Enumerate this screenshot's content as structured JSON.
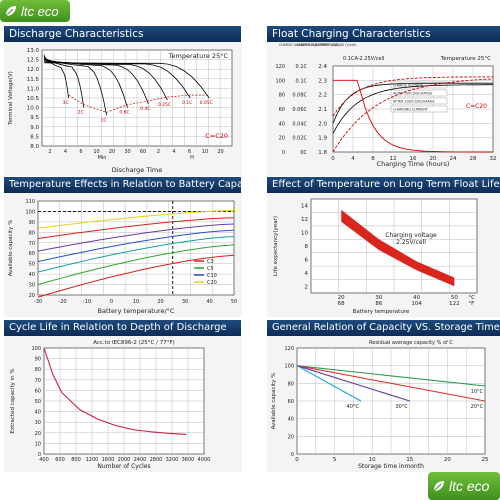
{
  "brand": {
    "logo_text": "ltc eco",
    "logo_text_bottom": "ltc eco",
    "accent": "#5aa72c",
    "title_bar": "#163f6e"
  },
  "panels": [
    {
      "title": "Discharge Characteristics"
    },
    {
      "title": "Float Charging Characteristics"
    },
    {
      "title": "Temperature Effects in Relation to Battery Capacity"
    },
    {
      "title": "Effect of Temperature on Long Term Float Life"
    },
    {
      "title": "Cycle Life in Relation to Depth of Discharge"
    },
    {
      "title": "General Relation of Capacity VS. Storage Time"
    }
  ],
  "chart_data": [
    {
      "type": "line",
      "title": "",
      "annotation": "Temperature 25°C",
      "note": "C=C20",
      "xlabel": "Discharge Time",
      "ylabel": "Terminal Voltage(V)",
      "ylim": [
        8.0,
        13.0
      ],
      "yticks": [
        "13.0",
        "12.0",
        "11.0",
        "10.0",
        "9.0",
        "8.0"
      ],
      "yvals": [
        13.0,
        12.5,
        12.0,
        11.5,
        11.0,
        10.5,
        10.0,
        9.5,
        9.0,
        8.5,
        8.0
      ],
      "ylabels_full": [
        "13.0",
        "12.5",
        "12.0",
        "11.5",
        "11.0",
        "10.5",
        "10.0",
        "9.5",
        "9.0",
        "8.5",
        "8.0"
      ],
      "xticks": [
        "2",
        "4",
        "6",
        "10",
        "20",
        "30",
        "60",
        "2",
        "4",
        "6",
        "10",
        "20"
      ],
      "xunits": [
        "Min",
        "H"
      ],
      "curve_labels": [
        "3C",
        "2C",
        "1C",
        "0.6C",
        "0.4C",
        "0.25C",
        "0.1C",
        "0.05C"
      ],
      "series": [
        {
          "end_x": 0.14,
          "end_v": 10.5
        },
        {
          "end_x": 0.22,
          "end_v": 10.0
        },
        {
          "end_x": 0.34,
          "end_v": 9.6
        },
        {
          "end_x": 0.45,
          "end_v": 10.0
        },
        {
          "end_x": 0.56,
          "end_v": 10.2
        },
        {
          "end_x": 0.66,
          "end_v": 10.4
        },
        {
          "end_x": 0.78,
          "end_v": 10.5
        },
        {
          "end_x": 0.88,
          "end_v": 10.5
        }
      ],
      "grid": true,
      "colors": {
        "curve": "#000000",
        "dash": "#cc0000",
        "note": "#cc0000"
      }
    },
    {
      "type": "line",
      "title": "",
      "annotation": "0.1CA-2.25V/cell",
      "annotation2": "Temperature 25°C",
      "note": "C=C20",
      "xlabel": "Charging Time (hours)",
      "left_axis_labels": [
        "CHARGE QUANTITY (%)",
        "CHARGING CURRENT (CA)",
        "BATTERY VOLTAGE (V/cell)"
      ],
      "xticks": [
        "0",
        "4",
        "8",
        "12",
        "16",
        "20",
        "24",
        "28",
        "32"
      ],
      "y_quantity": [
        "120",
        "100",
        "80",
        "60",
        "40",
        "20",
        "0"
      ],
      "y_current": [
        "0.1C",
        "0.1C",
        "0.08C",
        "0.06C",
        "0.04C",
        "0.02C",
        "0C"
      ],
      "y_voltage": [
        "2.4",
        "2.3",
        "2.2",
        "2.1",
        "2.0",
        "1.9",
        "1.8"
      ],
      "legend": [
        "CHARGE VOLTAGE",
        "AFTER 50% DISCHARGE",
        "AFTER 100% DISCHARGE",
        "CHARGING CURRENT"
      ],
      "grid": true,
      "colors": {
        "voltage": "#000000",
        "charge": "#cc0000",
        "note": "#cc0000"
      }
    },
    {
      "type": "line",
      "title": "",
      "xlabel": "Battery temperature/°C",
      "ylabel": "Available capacity %",
      "yticks": [
        "110",
        "100",
        "90",
        "80",
        "70",
        "60",
        "50",
        "40",
        "30",
        "20"
      ],
      "xticks": [
        "-30",
        "-20",
        "-10",
        "0",
        "10",
        "20",
        "30",
        "40",
        "50"
      ],
      "legend": [
        "C3",
        "C5",
        "C10",
        "C20"
      ],
      "series": [
        {
          "name": "C3",
          "color": "#d42020"
        },
        {
          "name": "C5",
          "color": "#2aa830"
        },
        {
          "name": "C10",
          "color": "#2850c8"
        },
        {
          "name": "C20",
          "color": "#e6d020"
        }
      ],
      "extra_colors": [
        "#d42020",
        "#2aa830",
        "#1aa0a0",
        "#2850c8",
        "#6a3a9a",
        "#e6d020"
      ],
      "grid": true
    },
    {
      "type": "area",
      "title": "",
      "annotation": "Charging voltage 2.25V/cell",
      "xlabel": "Battery temperature",
      "ylabel": "Life expectancy(year)",
      "yticks": [
        "14",
        "12",
        "10",
        "8",
        "6",
        "4",
        "2"
      ],
      "xticks_c": [
        "20",
        "30",
        "40",
        "50"
      ],
      "xticks_f": [
        "68",
        "86",
        "104",
        "122"
      ],
      "units": [
        "°C",
        "°F"
      ],
      "band_upper": [
        [
          20,
          13.4
        ],
        [
          30,
          9.0
        ],
        [
          40,
          5.7
        ],
        [
          50,
          3.3
        ]
      ],
      "band_lower": [
        [
          20,
          11.6
        ],
        [
          30,
          7.4
        ],
        [
          40,
          4.4
        ],
        [
          50,
          2.0
        ]
      ],
      "colors": {
        "band": "#d8261e"
      },
      "grid": true
    },
    {
      "type": "line",
      "title": "",
      "annotation": "Acc.to IEC896-2 (25°C / 77°F)",
      "xlabel": "Number of Cycles",
      "ylabel": "Extracted capacity in %",
      "xticks": [
        "400",
        "600",
        "800",
        "1200",
        "1600",
        "2000",
        "2400",
        "2800",
        "3200",
        "3600",
        "4000"
      ],
      "yticks": [
        "100",
        "90",
        "80",
        "70",
        "60",
        "50",
        "40",
        "30",
        "20",
        "10",
        "0"
      ],
      "series": [
        {
          "name": "",
          "points": [
            [
              400,
              100
            ],
            [
              600,
              75
            ],
            [
              800,
              58
            ],
            [
              1200,
              42
            ],
            [
              1600,
              33
            ],
            [
              2000,
              27
            ],
            [
              2400,
              23
            ],
            [
              2800,
              21
            ],
            [
              3200,
              19.5
            ],
            [
              3600,
              18.5
            ]
          ]
        }
      ],
      "colors": {
        "curve": "#cc2040"
      },
      "grid": true
    },
    {
      "type": "line",
      "title": "",
      "annotation": "Residual average capacity % of C",
      "xlabel": "Storage time inmonth",
      "ylabel": "Available capacity %",
      "xticks": [
        "0",
        "5",
        "10",
        "15",
        "20",
        "25"
      ],
      "yticks": [
        "120",
        "100",
        "80",
        "60",
        "40",
        "20",
        "0"
      ],
      "series": [
        {
          "name": "10°C",
          "color": "#2f9a4a",
          "points": [
            [
              0,
              100
            ],
            [
              25,
              77
            ]
          ]
        },
        {
          "name": "20°C",
          "color": "#e23030",
          "points": [
            [
              0,
              100
            ],
            [
              25,
              60
            ]
          ]
        },
        {
          "name": "30°C",
          "color": "#6a3a9a",
          "points": [
            [
              0,
              100
            ],
            [
              15,
              60
            ]
          ]
        },
        {
          "name": "40°C",
          "color": "#1aa0e0",
          "points": [
            [
              0,
              100
            ],
            [
              8.5,
              60
            ]
          ]
        }
      ],
      "grid": true
    }
  ]
}
